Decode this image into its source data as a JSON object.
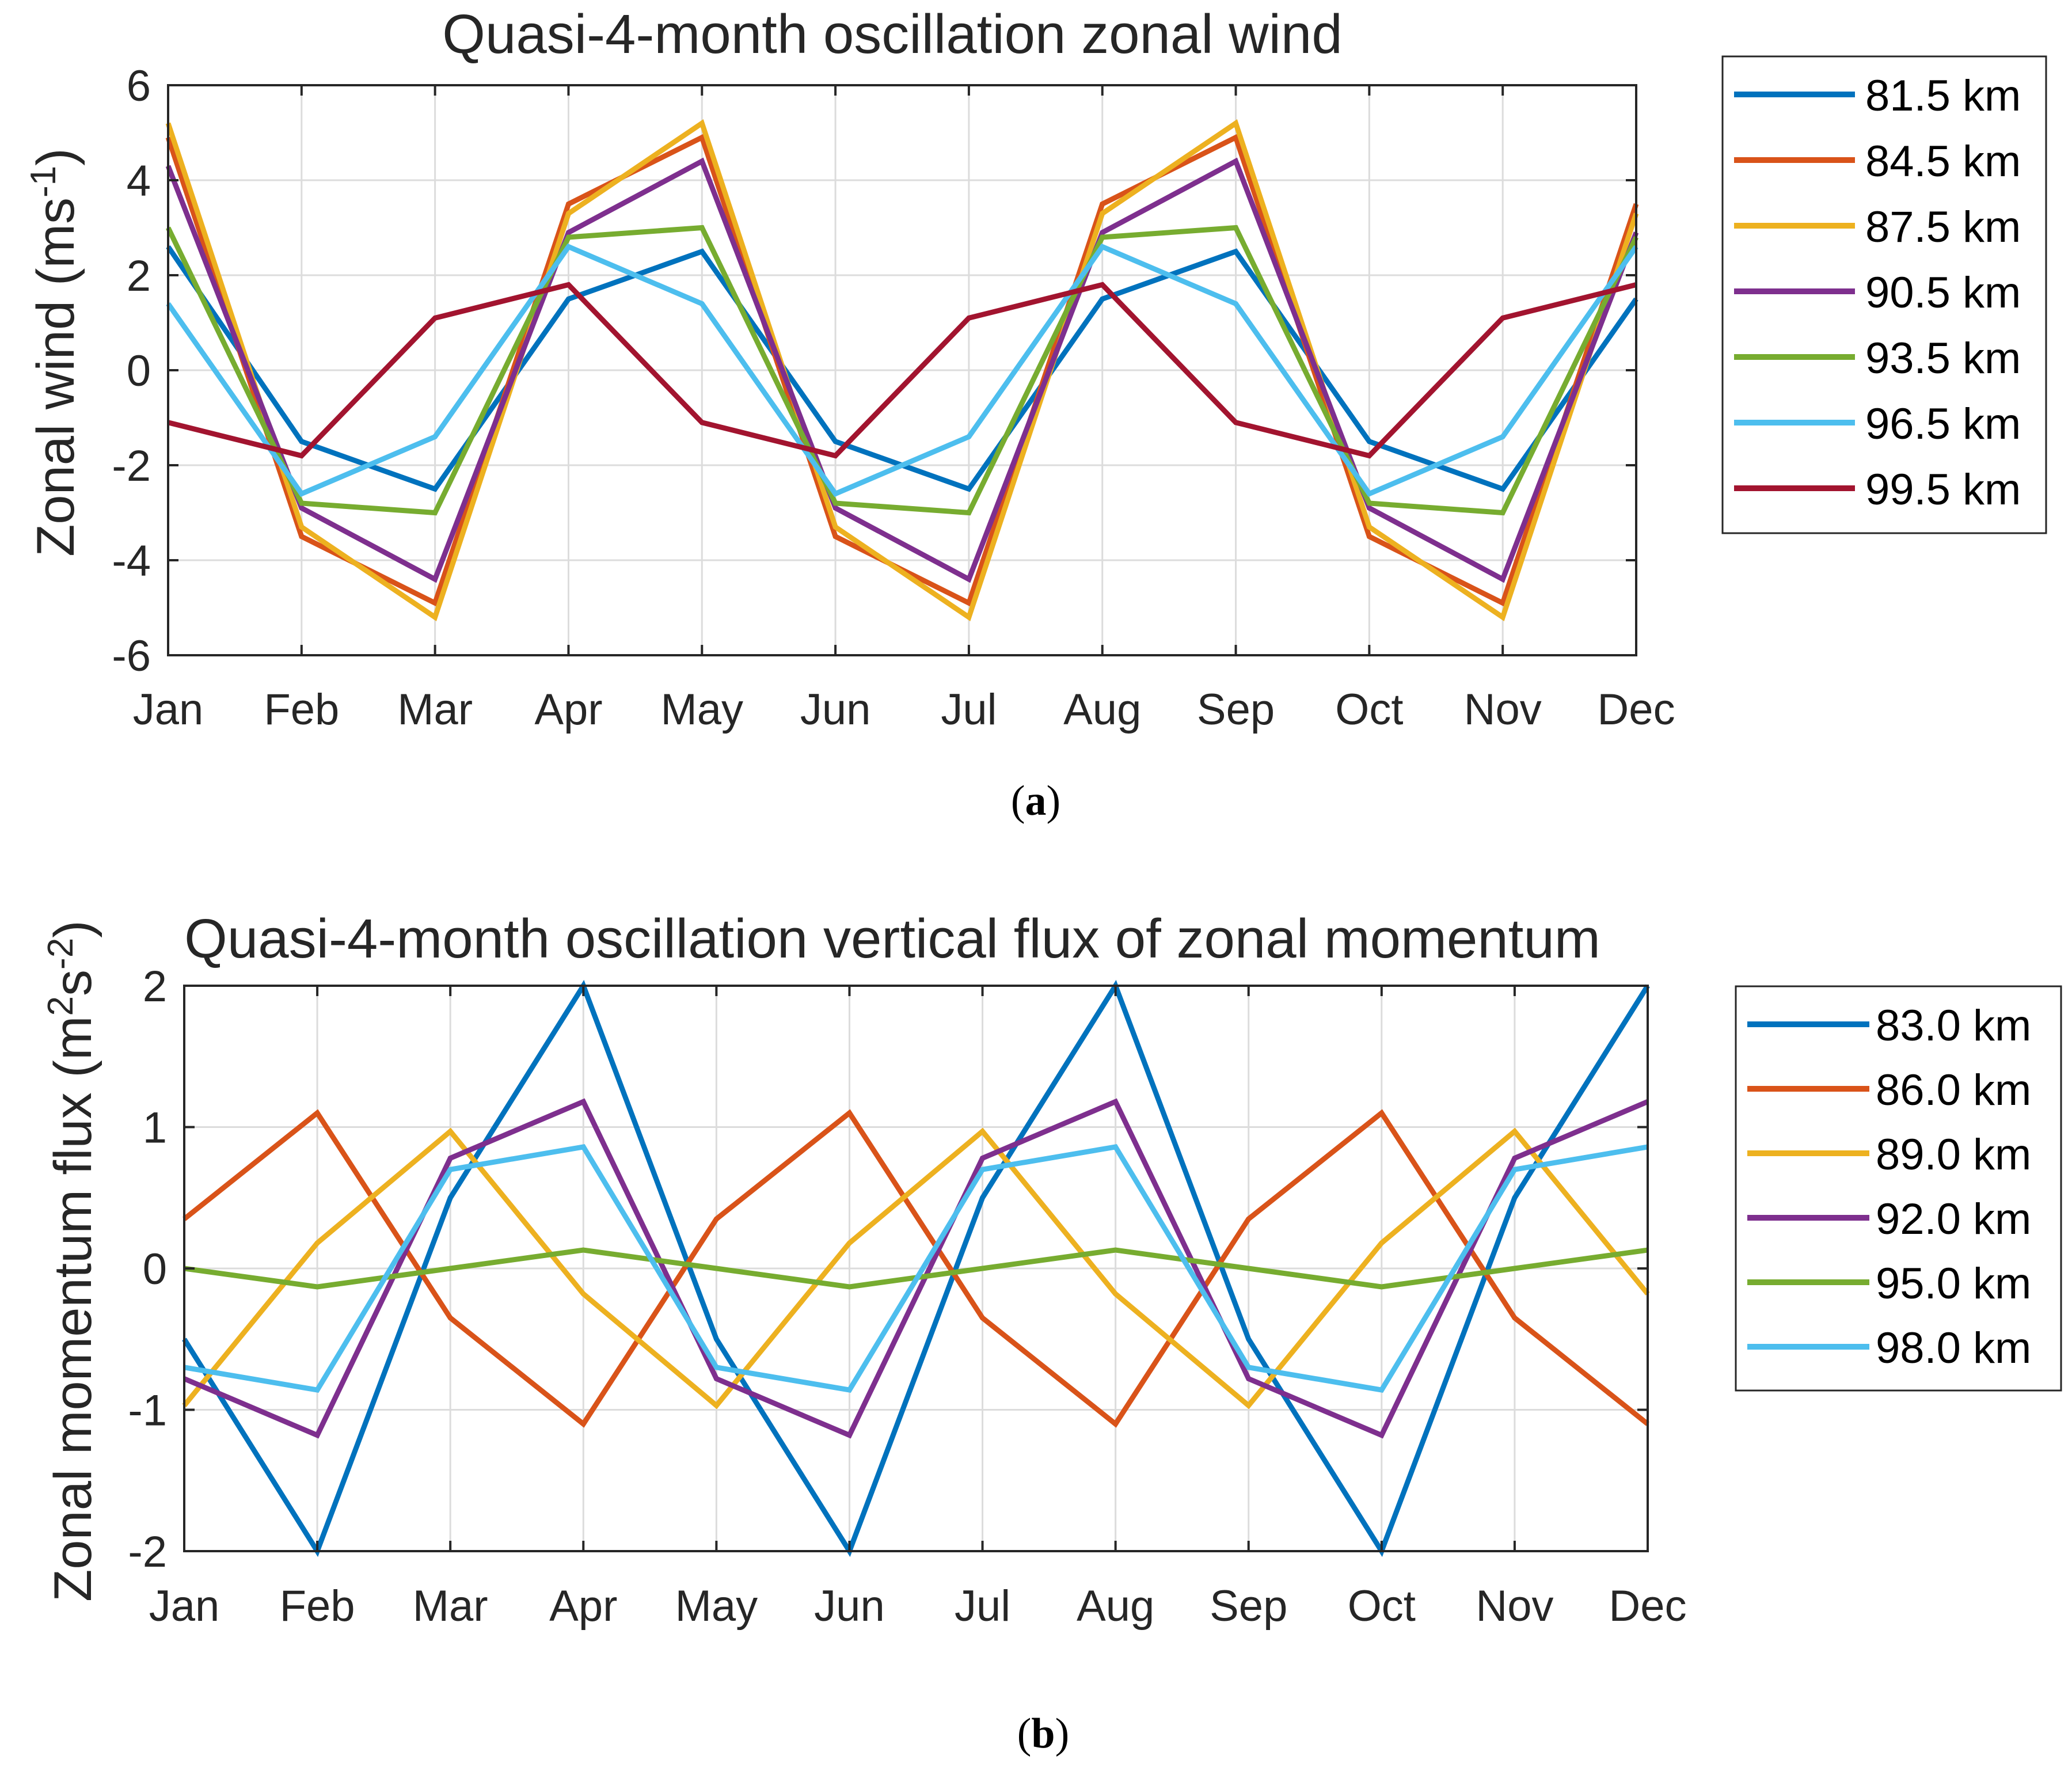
{
  "chart_data": [
    {
      "type": "line",
      "title": "Quasi-4-month oscillation zonal wind",
      "xlabel": "",
      "ylabel": "Zonal wind (ms",
      "ylabel_sup": "-1",
      "ylabel_end": ")",
      "categories": [
        "Jan",
        "Feb",
        "Mar",
        "Apr",
        "May",
        "Jun",
        "Jul",
        "Aug",
        "Sep",
        "Oct",
        "Nov",
        "Dec"
      ],
      "ylim": [
        -6,
        6
      ],
      "yticks": [
        -6,
        -4,
        -2,
        0,
        2,
        4,
        6
      ],
      "ytick_labels": [
        "-6",
        "-4",
        "-2",
        "0",
        "2",
        "4",
        "6"
      ],
      "grid": true,
      "legend_position": "outside-right",
      "caption": "(a)",
      "caption_letter": "a",
      "series": [
        {
          "name": "81.5 km",
          "color": "#0072BD",
          "values": [
            2.6,
            -1.5,
            -2.5,
            1.5,
            2.5,
            -1.5,
            -2.5,
            1.5,
            2.5,
            -1.5,
            -2.5,
            1.5
          ]
        },
        {
          "name": "84.5 km",
          "color": "#D95319",
          "values": [
            4.9,
            -3.5,
            -4.9,
            3.5,
            4.9,
            -3.5,
            -4.9,
            3.5,
            4.9,
            -3.5,
            -4.9,
            3.5
          ]
        },
        {
          "name": "87.5 km",
          "color": "#EDB120",
          "values": [
            5.2,
            -3.3,
            -5.2,
            3.3,
            5.2,
            -3.3,
            -5.2,
            3.3,
            5.2,
            -3.3,
            -5.2,
            3.3
          ]
        },
        {
          "name": "90.5 km",
          "color": "#7E2F8E",
          "values": [
            4.3,
            -2.9,
            -4.4,
            2.9,
            4.4,
            -2.9,
            -4.4,
            2.9,
            4.4,
            -2.9,
            -4.4,
            2.9
          ]
        },
        {
          "name": "93.5 km",
          "color": "#77AC30",
          "values": [
            3.0,
            -2.8,
            -3.0,
            2.8,
            3.0,
            -2.8,
            -3.0,
            2.8,
            3.0,
            -2.8,
            -3.0,
            2.8
          ]
        },
        {
          "name": "96.5 km",
          "color": "#4DBEEE",
          "values": [
            1.4,
            -2.6,
            -1.4,
            2.6,
            1.4,
            -2.6,
            -1.4,
            2.6,
            1.4,
            -2.6,
            -1.4,
            2.6
          ]
        },
        {
          "name": "99.5 km",
          "color": "#A2142F",
          "values": [
            -1.1,
            -1.8,
            1.1,
            1.8,
            -1.1,
            -1.8,
            1.1,
            1.8,
            -1.1,
            -1.8,
            1.1,
            1.8
          ]
        }
      ]
    },
    {
      "type": "line",
      "title": "Quasi-4-month oscillation vertical flux of zonal momentum",
      "xlabel": "",
      "ylabel": "Zonal momentum flux (m",
      "ylabel_sup": "2",
      "ylabel_mid": "s",
      "ylabel_sup2": "-2",
      "ylabel_end": ")",
      "categories": [
        "Jan",
        "Feb",
        "Mar",
        "Apr",
        "May",
        "Jun",
        "Jul",
        "Aug",
        "Sep",
        "Oct",
        "Nov",
        "Dec"
      ],
      "ylim": [
        -2,
        2
      ],
      "yticks": [
        -2,
        -1,
        0,
        1,
        2
      ],
      "ytick_labels": [
        "-2",
        "-1",
        "0",
        "1",
        "2"
      ],
      "grid": true,
      "legend_position": "outside-right",
      "caption": "(b)",
      "caption_letter": "b",
      "series": [
        {
          "name": "83.0 km",
          "color": "#0072BD",
          "values": [
            -0.5,
            -2.0,
            0.5,
            2.0,
            -0.5,
            -2.0,
            0.5,
            2.0,
            -0.5,
            -2.0,
            0.5,
            2.0
          ]
        },
        {
          "name": "86.0 km",
          "color": "#D95319",
          "values": [
            0.35,
            1.1,
            -0.35,
            -1.1,
            0.35,
            1.1,
            -0.35,
            -1.1,
            0.35,
            1.1,
            -0.35,
            -1.1
          ]
        },
        {
          "name": "89.0 km",
          "color": "#EDB120",
          "values": [
            -0.97,
            0.18,
            0.97,
            -0.18,
            -0.97,
            0.18,
            0.97,
            -0.18,
            -0.97,
            0.18,
            0.97,
            -0.18
          ]
        },
        {
          "name": "92.0 km",
          "color": "#7E2F8E",
          "values": [
            -0.78,
            -1.18,
            0.78,
            1.18,
            -0.78,
            -1.18,
            0.78,
            1.18,
            -0.78,
            -1.18,
            0.78,
            1.18
          ]
        },
        {
          "name": "95.0 km",
          "color": "#77AC30",
          "values": [
            0.0,
            -0.13,
            0.0,
            0.13,
            0.0,
            -0.13,
            0.0,
            0.13,
            0.0,
            -0.13,
            0.0,
            0.13
          ]
        },
        {
          "name": "98.0 km",
          "color": "#4DBEEE",
          "values": [
            -0.7,
            -0.86,
            0.7,
            0.86,
            -0.7,
            -0.86,
            0.7,
            0.86,
            -0.7,
            -0.86,
            0.7,
            0.86
          ]
        }
      ]
    }
  ]
}
